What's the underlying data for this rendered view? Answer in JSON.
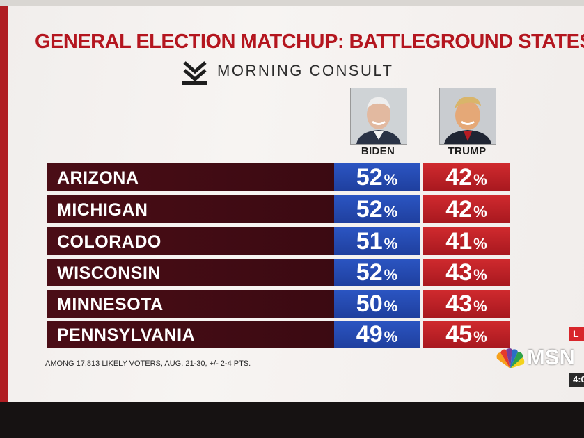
{
  "header": {
    "title": "GENERAL ELECTION MATCHUP: BATTLEGROUND STATES",
    "brand_name": "MORNING CONSULT",
    "brand_icon": "morning-consult-chevron-icon"
  },
  "candidates": [
    {
      "name": "BIDEN",
      "color": "#2449b0"
    },
    {
      "name": "TRUMP",
      "color": "#c4222a"
    }
  ],
  "rows": [
    {
      "state": "ARIZONA",
      "biden": "52",
      "trump": "42"
    },
    {
      "state": "MICHIGAN",
      "biden": "52",
      "trump": "42"
    },
    {
      "state": "COLORADO",
      "biden": "51",
      "trump": "41"
    },
    {
      "state": "WISCONSIN",
      "biden": "52",
      "trump": "43"
    },
    {
      "state": "MINNESOTA",
      "biden": "50",
      "trump": "43"
    },
    {
      "state": "PENNSYLVANIA",
      "biden": "49",
      "trump": "45"
    }
  ],
  "percent_sign": "%",
  "footnote": "AMONG 17,813 LIKELY VOTERS, AUG. 21-30, +/- 2-4 PTS.",
  "overlay": {
    "live_badge": "L",
    "network": "MSN",
    "network_icon": "peacock-icon",
    "clock": "4:0"
  }
}
